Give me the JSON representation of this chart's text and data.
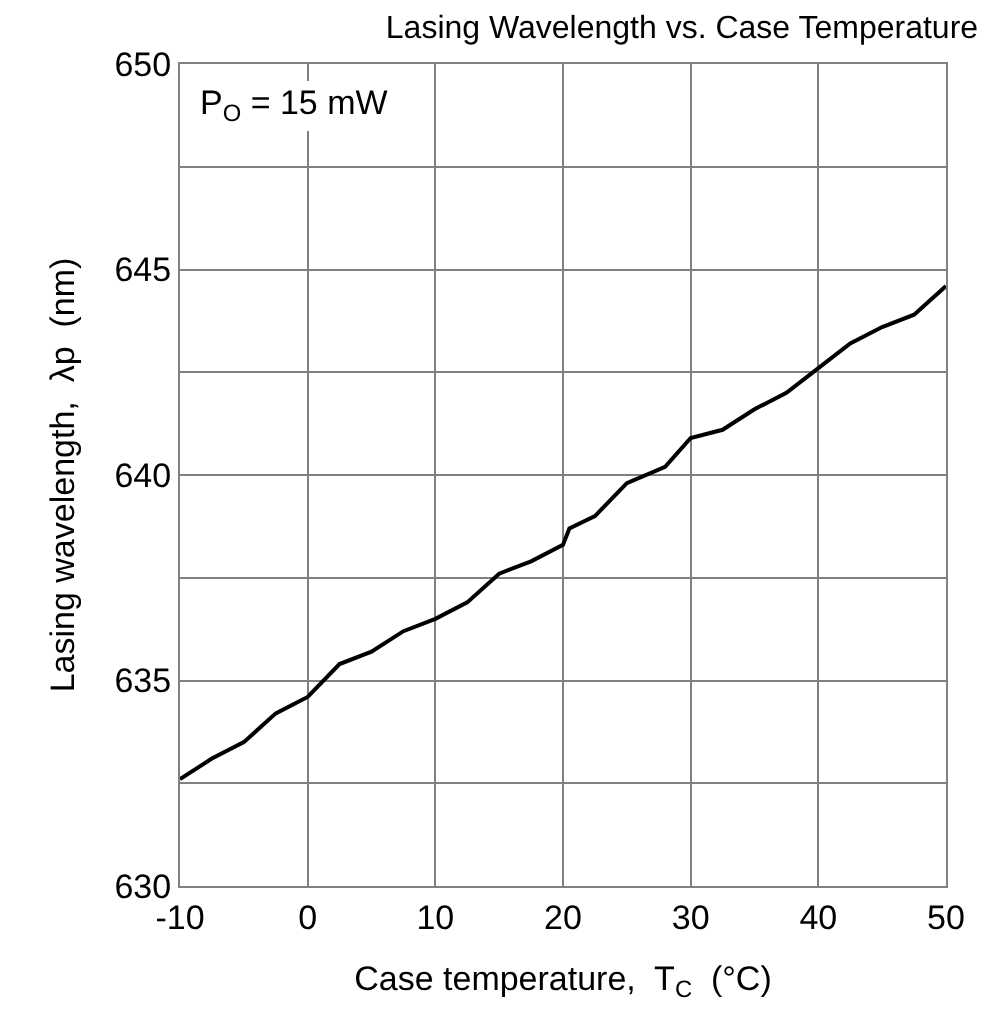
{
  "chart_data": {
    "type": "line",
    "title": "Lasing Wavelength vs. Case Temperature",
    "xlabel": "Case temperature,  T$_{C}$  (°C)",
    "ylabel": "Lasing wavelength,  λp  (nm)",
    "annotations": [
      "P$_{O}$ = 15 mW"
    ],
    "x": [
      -10,
      -7.5,
      -5,
      -2.5,
      0,
      2.5,
      5,
      7.5,
      10,
      12.5,
      15,
      17.5,
      20,
      20.5,
      22.5,
      25,
      28,
      30,
      32.5,
      35,
      37.5,
      40,
      42.5,
      45,
      47.5,
      50
    ],
    "series": [
      {
        "color": "#000000",
        "values": [
          632.6,
          633.1,
          633.5,
          634.2,
          634.6,
          635.4,
          635.7,
          636.2,
          636.5,
          636.9,
          637.6,
          637.9,
          638.3,
          638.7,
          639.0,
          639.8,
          640.2,
          640.9,
          641.1,
          641.6,
          642.0,
          642.6,
          643.2,
          643.6,
          643.9,
          644.6
        ]
      }
    ],
    "xlim": [
      -10,
      50
    ],
    "xticks": [
      -10,
      0,
      10,
      20,
      30,
      40,
      50
    ],
    "ylim": [
      630,
      650
    ],
    "yticks": [
      630,
      {
        "value": 632.5,
        "label": null
      },
      635,
      {
        "value": 637.5,
        "label": null
      },
      640,
      {
        "value": 642.5,
        "label": null
      },
      645,
      {
        "value": 647.5,
        "label": null
      },
      650
    ],
    "grid": true,
    "line_style": "solid"
  }
}
